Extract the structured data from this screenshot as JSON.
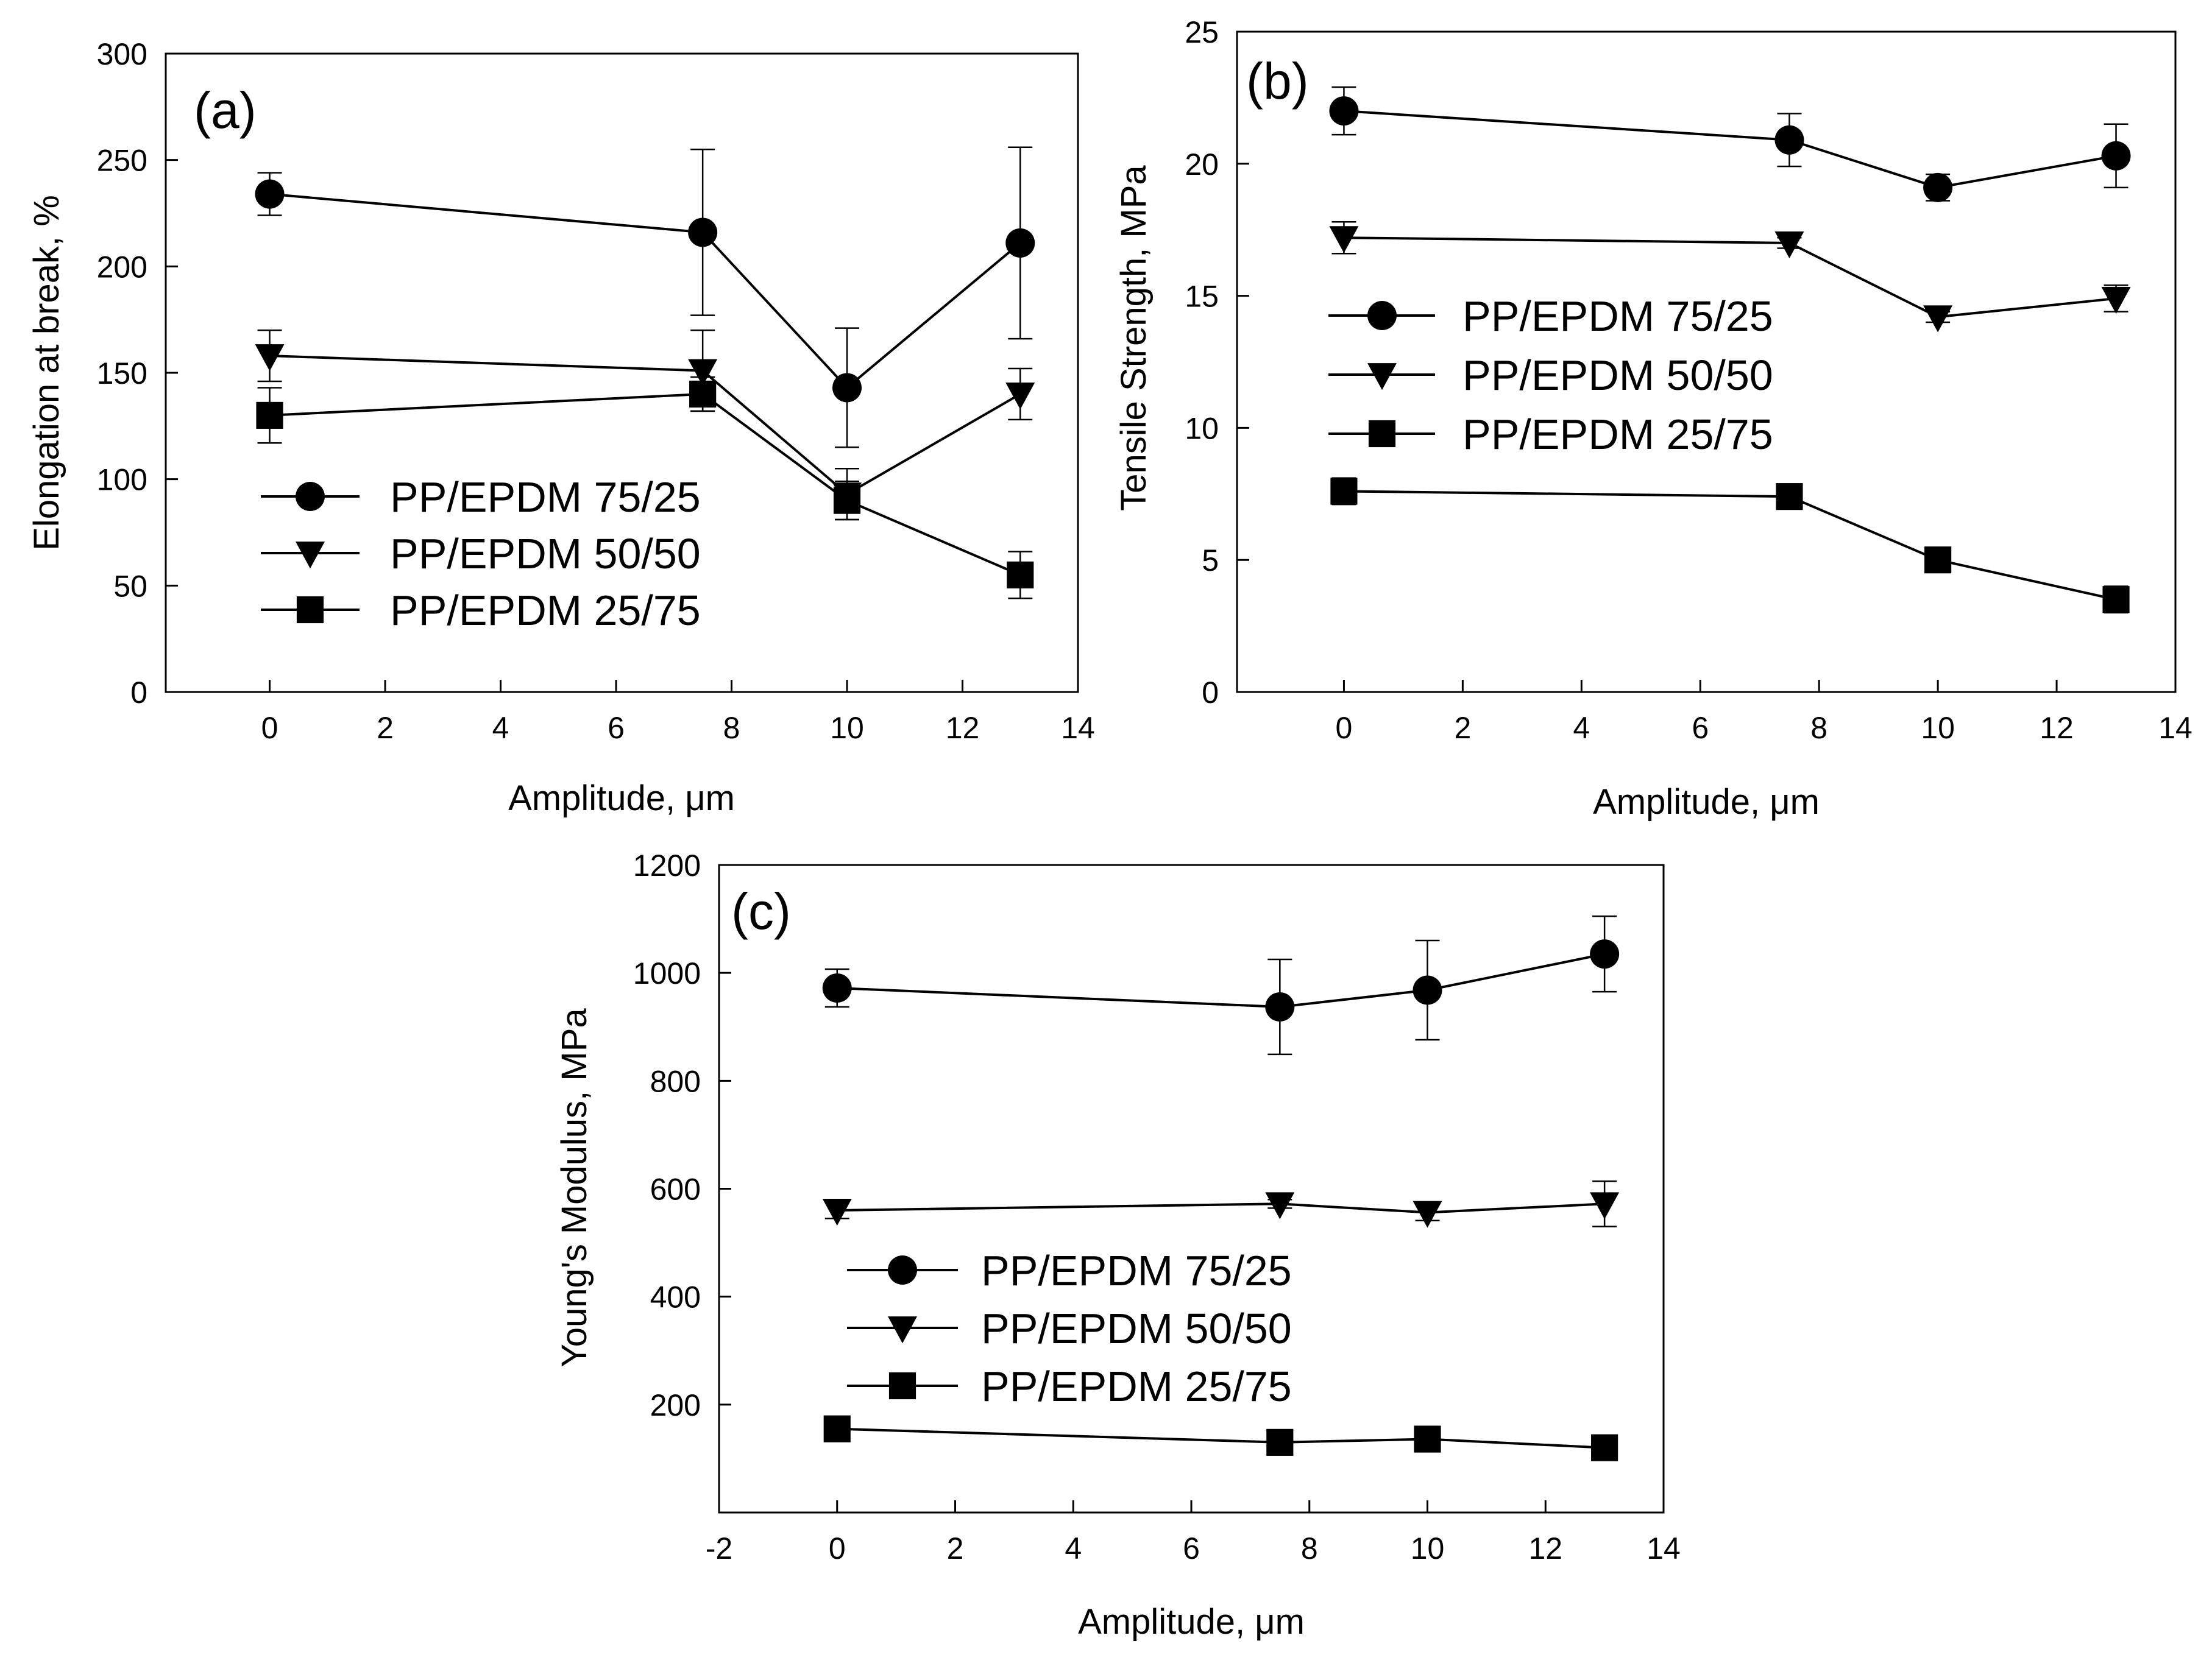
{
  "figure": {
    "background": "#ffffff",
    "line_color": "#000000"
  },
  "chart_data": [
    {
      "type": "line",
      "panel_label": "(a)",
      "xlabel": "Amplitude, μm",
      "ylabel": "Elongation at break, %",
      "xlim": [
        -1.8,
        14
      ],
      "ylim": [
        0,
        300
      ],
      "xticks": [
        0,
        2,
        4,
        6,
        8,
        10,
        12,
        14
      ],
      "yticks": [
        0,
        50,
        100,
        150,
        200,
        250,
        300
      ],
      "legend_position": "lower-left",
      "x": [
        0,
        7.5,
        10,
        13
      ],
      "series": [
        {
          "name": "PP/EPDM 75/25",
          "marker": "circle",
          "values": [
            234,
            216,
            143,
            211
          ],
          "errors": [
            10,
            39,
            28,
            45
          ]
        },
        {
          "name": "PP/EPDM 50/50",
          "marker": "triangle-down",
          "values": [
            158,
            151,
            93,
            140
          ],
          "errors": [
            12,
            19,
            12,
            12
          ]
        },
        {
          "name": "PP/EPDM 25/75",
          "marker": "square",
          "values": [
            130,
            140,
            90,
            55
          ],
          "errors": [
            13,
            8,
            9,
            11
          ]
        }
      ]
    },
    {
      "type": "line",
      "panel_label": "(b)",
      "xlabel": "Amplitude, μm",
      "ylabel": "Tensile Strength, MPa",
      "xlim": [
        -1.8,
        14
      ],
      "ylim": [
        0,
        25
      ],
      "xticks": [
        0,
        2,
        4,
        6,
        8,
        10,
        12,
        14
      ],
      "yticks": [
        0,
        5,
        10,
        15,
        20,
        25
      ],
      "legend_position": "center-left",
      "x": [
        0,
        7.5,
        10,
        13
      ],
      "series": [
        {
          "name": "PP/EPDM 75/25",
          "marker": "circle",
          "values": [
            22.0,
            20.9,
            19.1,
            20.3
          ],
          "errors": [
            0.9,
            1.0,
            0.5,
            1.2
          ]
        },
        {
          "name": "PP/EPDM 50/50",
          "marker": "triangle-down",
          "values": [
            17.2,
            17.0,
            14.2,
            14.9
          ],
          "errors": [
            0.6,
            0.2,
            0.2,
            0.5
          ]
        },
        {
          "name": "PP/EPDM 25/75",
          "marker": "square",
          "values": [
            7.6,
            7.4,
            5.0,
            3.5
          ],
          "errors": [
            0.5,
            0.4,
            0.2,
            0.5
          ]
        }
      ]
    },
    {
      "type": "line",
      "panel_label": "(c)",
      "xlabel": "Amplitude, μm",
      "ylabel": "Young's Modulus, MPa",
      "xlim": [
        -2,
        14
      ],
      "ylim": [
        0,
        1200
      ],
      "xticks": [
        -2,
        0,
        2,
        4,
        6,
        8,
        10,
        12,
        14
      ],
      "yticks": [
        200,
        400,
        600,
        800,
        1000,
        1200
      ],
      "legend_position": "center-left",
      "x": [
        0,
        7.5,
        10,
        13
      ],
      "series": [
        {
          "name": "PP/EPDM 75/25",
          "marker": "circle",
          "values": [
            972,
            937,
            968,
            1035
          ],
          "errors": [
            35,
            88,
            92,
            70
          ]
        },
        {
          "name": "PP/EPDM 50/50",
          "marker": "triangle-down",
          "values": [
            560,
            572,
            556,
            572
          ],
          "errors": [
            15,
            8,
            15,
            42
          ]
        },
        {
          "name": "PP/EPDM 25/75",
          "marker": "square",
          "values": [
            155,
            130,
            136,
            120
          ],
          "errors": [
            8,
            6,
            6,
            6
          ]
        }
      ]
    }
  ]
}
